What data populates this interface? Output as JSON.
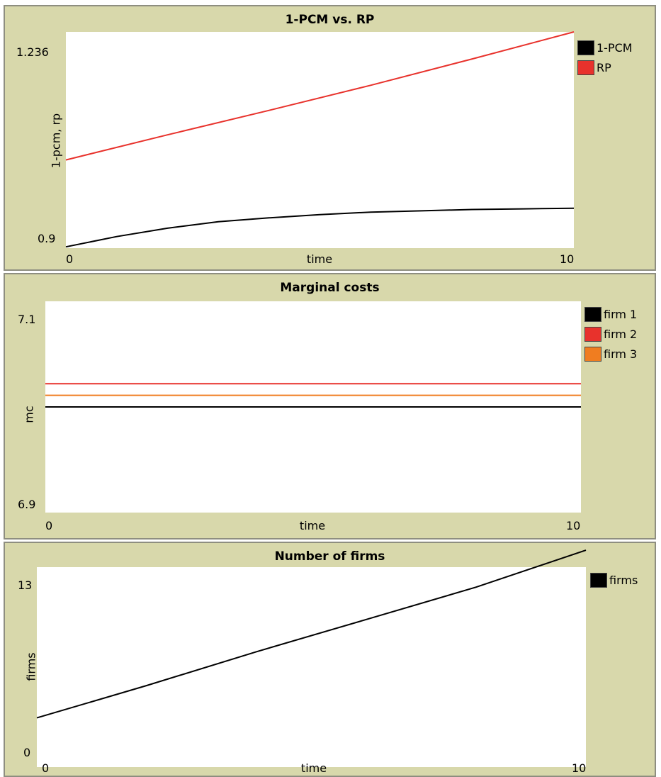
{
  "chart_data": [
    {
      "type": "line",
      "title": "1-PCM vs. RP",
      "xlabel": "time",
      "ylabel": "1-pcm, rp",
      "x_ticks": [
        "0",
        "10"
      ],
      "y_ticks": [
        "0.9",
        "1.236"
      ],
      "xlim": [
        0,
        10
      ],
      "ylim": [
        0.9,
        1.236
      ],
      "grid": false,
      "legend_placement": "top-right",
      "series": [
        {
          "name": "1-PCM",
          "color": "#000000",
          "x": [
            0,
            1,
            2,
            3,
            4,
            5,
            6,
            7,
            8,
            9,
            10
          ],
          "y": [
            0.902,
            0.918,
            0.931,
            0.941,
            0.947,
            0.952,
            0.956,
            0.958,
            0.96,
            0.961,
            0.962
          ]
        },
        {
          "name": "RP",
          "color": "#e8322c",
          "x": [
            0,
            2,
            4,
            6,
            8,
            10
          ],
          "y": [
            1.037,
            1.076,
            1.114,
            1.153,
            1.194,
            1.236
          ]
        }
      ]
    },
    {
      "type": "line",
      "title": "Marginal costs",
      "xlabel": "time",
      "ylabel": "mc",
      "x_ticks": [
        "0",
        "10"
      ],
      "y_ticks": [
        "6.9",
        "7.1"
      ],
      "xlim": [
        0,
        10
      ],
      "ylim": [
        6.9,
        7.1
      ],
      "grid": false,
      "legend_placement": "top-right",
      "series": [
        {
          "name": "firm 1",
          "color": "#000000",
          "x": [
            0,
            10
          ],
          "y": [
            7.0,
            7.0
          ]
        },
        {
          "name": "firm 2",
          "color": "#e8322c",
          "x": [
            0,
            10
          ],
          "y": [
            7.022,
            7.022
          ]
        },
        {
          "name": "firm 3",
          "color": "#f07d20",
          "x": [
            0,
            10
          ],
          "y": [
            7.011,
            7.011
          ]
        }
      ]
    },
    {
      "type": "line",
      "title": "Number of firms",
      "xlabel": "time",
      "ylabel": "firms",
      "x_ticks": [
        "0",
        "10"
      ],
      "y_ticks": [
        "0",
        "13"
      ],
      "xlim": [
        0,
        10
      ],
      "ylim": [
        0,
        13
      ],
      "grid": false,
      "legend_placement": "top-right",
      "series": [
        {
          "name": "firms",
          "color": "#000000",
          "x": [
            0,
            2,
            4,
            6,
            8,
            10
          ],
          "y": [
            3.2,
            5.3,
            7.5,
            9.6,
            11.7,
            14.1
          ]
        }
      ]
    }
  ]
}
